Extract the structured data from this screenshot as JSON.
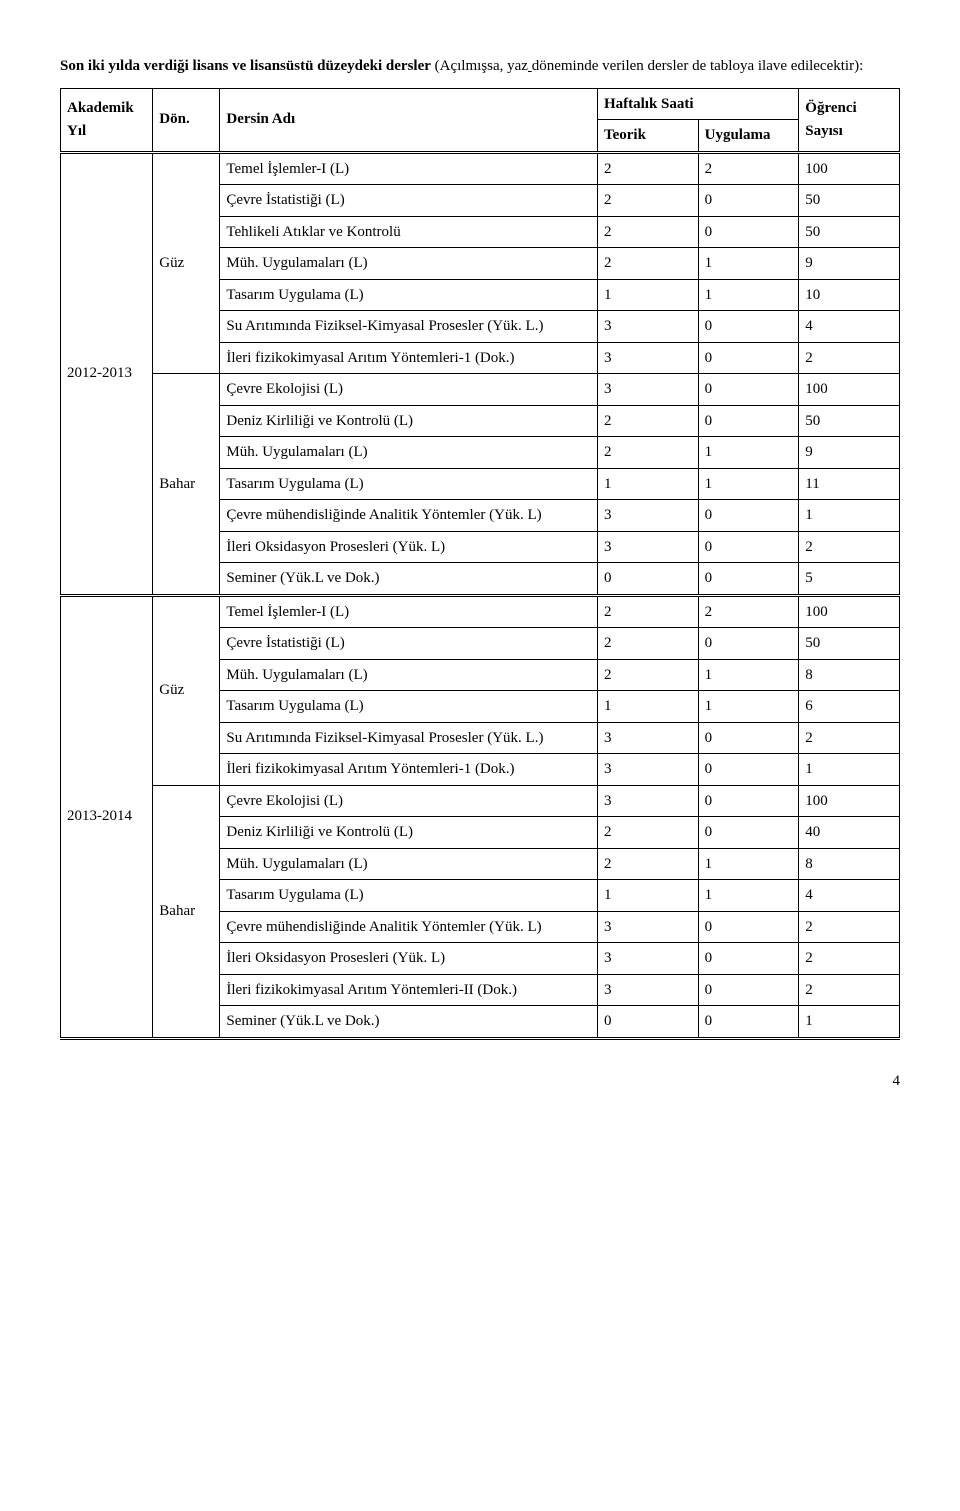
{
  "intro_part1_bold": "Son iki yılda verdiği lisans ve lisansüstü düzeydeki dersler",
  "intro_part2": " (Açılmışsa, yaz",
  "intro_part3": " döneminde verilen dersler de tabloya ilave edilecektir):",
  "headers": {
    "akademik": "Akademik",
    "yil": "Yıl",
    "don": "Dön.",
    "dersin": "Dersin Adı",
    "haftalik": "Haftalık Saati",
    "teorik": "Teorik",
    "uygulama": "Uygulama",
    "ogrenci": "Öğrenci",
    "sayisi": "Sayısı"
  },
  "years": {
    "y1": "2012-2013",
    "y2": "2013-2014"
  },
  "sems": {
    "guz": "Güz",
    "bahar": "Bahar"
  },
  "rows": {
    "r1": {
      "name": "Temel İşlemler-I (L)",
      "t": "2",
      "u": "2",
      "o": "100"
    },
    "r2": {
      "name": "Çevre İstatistiği (L)",
      "t": "2",
      "u": "0",
      "o": "50"
    },
    "r3": {
      "name": "Tehlikeli Atıklar ve Kontrolü",
      "t": "2",
      "u": "0",
      "o": "50"
    },
    "r4": {
      "name": "Müh. Uygulamaları (L)",
      "t": "2",
      "u": "1",
      "o": "9"
    },
    "r5": {
      "name": "Tasarım Uygulama (L)",
      "t": "1",
      "u": "1",
      "o": "10"
    },
    "r6": {
      "name": "Su Arıtımında Fiziksel-Kimyasal Prosesler (Yük. L.)",
      "t": "3",
      "u": "0",
      "o": "4"
    },
    "r7": {
      "name": "İleri fizikokimyasal Arıtım Yöntemleri-1 (Dok.)",
      "t": "3",
      "u": "0",
      "o": "2"
    },
    "r8": {
      "name": "Çevre Ekolojisi (L)",
      "t": "3",
      "u": "0",
      "o": "100"
    },
    "r9": {
      "name": "Deniz Kirliliği ve Kontrolü (L)",
      "t": "2",
      "u": "0",
      "o": "50"
    },
    "r10": {
      "name": "Müh. Uygulamaları (L)",
      "t": "2",
      "u": "1",
      "o": "9"
    },
    "r11": {
      "name": "Tasarım Uygulama (L)",
      "t": "1",
      "u": "1",
      "o": "11"
    },
    "r12": {
      "name": "Çevre mühendisliğinde Analitik Yöntemler (Yük. L)",
      "t": "3",
      "u": "0",
      "o": "1"
    },
    "r13": {
      "name": "İleri Oksidasyon Prosesleri  (Yük. L)",
      "t": "3",
      "u": "0",
      "o": "2"
    },
    "r14": {
      "name": "Seminer (Yük.L ve Dok.)",
      "t": "0",
      "u": "0",
      "o": "5"
    },
    "r15": {
      "name": "Temel İşlemler-I (L)",
      "t": "2",
      "u": "2",
      "o": "100"
    },
    "r16": {
      "name": "Çevre İstatistiği (L)",
      "t": "2",
      "u": "0",
      "o": "50"
    },
    "r17": {
      "name": "Müh. Uygulamaları (L)",
      "t": "2",
      "u": "1",
      "o": "8"
    },
    "r18": {
      "name": "Tasarım Uygulama (L)",
      "t": "1",
      "u": "1",
      "o": "6"
    },
    "r19": {
      "name": "Su Arıtımında Fiziksel-Kimyasal Prosesler (Yük. L.)",
      "t": "3",
      "u": "0",
      "o": "2"
    },
    "r20": {
      "name": "İleri fizikokimyasal Arıtım Yöntemleri-1 (Dok.)",
      "t": "3",
      "u": "0",
      "o": "1"
    },
    "r21": {
      "name": "Çevre Ekolojisi (L)",
      "t": "3",
      "u": "0",
      "o": "100"
    },
    "r22": {
      "name": "Deniz Kirliliği ve Kontrolü (L)",
      "t": "2",
      "u": "0",
      "o": "40"
    },
    "r23": {
      "name": "Müh. Uygulamaları (L)",
      "t": "2",
      "u": "1",
      "o": "8"
    },
    "r24": {
      "name": "Tasarım Uygulama (L)",
      "t": "1",
      "u": "1",
      "o": "4"
    },
    "r25": {
      "name": "Çevre mühendisliğinde Analitik Yöntemler (Yük. L)",
      "t": "3",
      "u": "0",
      "o": "2"
    },
    "r26": {
      "name": "İleri Oksidasyon Prosesleri  (Yük. L)",
      "t": "3",
      "u": "0",
      "o": "2"
    },
    "r27": {
      "name": "İleri fizikokimyasal Arıtım Yöntemleri-II (Dok.)",
      "t": "3",
      "u": "0",
      "o": "2"
    },
    "r28": {
      "name": "Seminer (Yük.L ve Dok.)",
      "t": "0",
      "u": "0",
      "o": "1"
    }
  },
  "page_number": "4"
}
